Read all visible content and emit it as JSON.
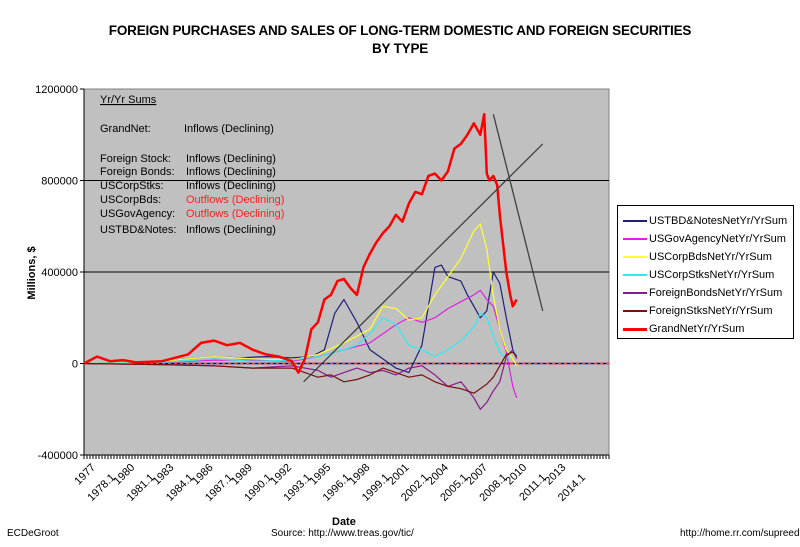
{
  "chart_data": {
    "type": "line",
    "title": "FOREIGN PURCHASES AND SALES OF LONG-TERM DOMESTIC AND FOREIGN SECURITIES",
    "subtitle": "BY TYPE",
    "xlabel": "Date",
    "ylabel": "Millions, $",
    "ylim": [
      -400000,
      1200000
    ],
    "xlim": [
      1977,
      2017.4
    ],
    "y_ticks": [
      "1200000",
      "800000",
      "400000",
      "0",
      "-400000"
    ],
    "y_tick_values": [
      1200000,
      800000,
      400000,
      0,
      -400000
    ],
    "x_tick_labels": [
      "1977",
      "1978.1",
      "1980",
      "1981.1",
      "1983",
      "1984.1",
      "1986",
      "1987.1",
      "1989",
      "1990.1",
      "1992",
      "1993.1",
      "1995",
      "1996.1",
      "1998",
      "1999.1",
      "2001",
      "2002.1",
      "2004",
      "2005.1",
      "2007",
      "2008.1",
      "2010",
      "2011.1",
      "2013",
      "2014.1"
    ],
    "gridlines": "horizontal at 400000 and 800000",
    "legend_position": "right",
    "series": [
      {
        "name": "USTBD&NotesNetYr/YrSum",
        "color": "#1f1f7a",
        "x": [
          1977,
          1980,
          1983,
          1985,
          1987,
          1989,
          1991,
          1993,
          1994.5,
          1995.5,
          1996.3,
          1997,
          1998,
          1999,
          2000,
          2001,
          2002,
          2003,
          2004,
          2004.5,
          2005,
          2006,
          2006.5,
          2007,
          2007.5,
          2008,
          2008.5,
          2009,
          2009.5,
          2010,
          2010.3
        ],
        "y": [
          0,
          5000,
          10000,
          20000,
          30000,
          25000,
          30000,
          25000,
          30000,
          60000,
          220000,
          280000,
          180000,
          60000,
          20000,
          -20000,
          -40000,
          80000,
          420000,
          430000,
          380000,
          360000,
          300000,
          250000,
          200000,
          230000,
          400000,
          350000,
          200000,
          60000,
          30000
        ]
      },
      {
        "name": "USGovAgencyNetYr/YrSum",
        "color": "#e020e0",
        "x": [
          1977,
          1983,
          1987,
          1990,
          1993,
          1995,
          1997,
          1999,
          2001,
          2002,
          2003,
          2004,
          2005,
          2006,
          2007,
          2007.5,
          2008,
          2008.5,
          2009,
          2009.5,
          2010,
          2010.3
        ],
        "y": [
          0,
          5000,
          15000,
          15000,
          10000,
          30000,
          60000,
          90000,
          170000,
          200000,
          180000,
          200000,
          240000,
          270000,
          300000,
          320000,
          280000,
          250000,
          150000,
          50000,
          -100000,
          -150000
        ]
      },
      {
        "name": "USCorpBdsNetYr/YrSum",
        "color": "#ffff33",
        "x": [
          1977,
          1983,
          1987,
          1990,
          1993,
          1995,
          1997,
          1999,
          2000,
          2001,
          2002,
          2003,
          2004,
          2005,
          2006,
          2007,
          2007.5,
          2008,
          2008.5,
          2009,
          2009.5,
          2010,
          2010.3
        ],
        "y": [
          0,
          10000,
          30000,
          20000,
          15000,
          40000,
          90000,
          150000,
          250000,
          240000,
          190000,
          200000,
          300000,
          380000,
          460000,
          580000,
          610000,
          500000,
          300000,
          150000,
          60000,
          20000,
          -10000
        ]
      },
      {
        "name": "USCorpStksNetYr/YrSum",
        "color": "#33e8f0",
        "x": [
          1977,
          1983,
          1987,
          1990,
          1993,
          1995,
          1997,
          1998,
          1999,
          2000,
          2001,
          2002,
          2003,
          2004,
          2005,
          2006,
          2007,
          2007.5,
          2008,
          2008.5,
          2009,
          2009.5,
          2010,
          2010.3
        ],
        "y": [
          0,
          5000,
          20000,
          10000,
          15000,
          30000,
          60000,
          80000,
          130000,
          200000,
          170000,
          80000,
          60000,
          30000,
          60000,
          100000,
          160000,
          220000,
          200000,
          120000,
          50000,
          20000,
          60000,
          40000
        ]
      },
      {
        "name": "ForeignBondsNetYr/YrSum",
        "color": "#8b1a8b",
        "x": [
          1977,
          1983,
          1987,
          1990,
          1993,
          1995,
          1996,
          1997,
          1998,
          1999,
          2000,
          2001,
          2002,
          2003,
          2004,
          2005,
          2006,
          2007,
          2007.5,
          2008,
          2008.5,
          2009,
          2009.5,
          2010,
          2010.3
        ],
        "y": [
          0,
          -5000,
          -10000,
          -20000,
          -10000,
          -30000,
          -60000,
          -40000,
          -20000,
          -40000,
          -30000,
          -50000,
          -20000,
          -10000,
          -50000,
          -100000,
          -80000,
          -150000,
          -200000,
          -170000,
          -120000,
          -80000,
          30000,
          60000,
          20000
        ]
      },
      {
        "name": "ForeignStksNetYr/YrSum",
        "color": "#7a1010",
        "x": [
          1977,
          1983,
          1987,
          1990,
          1993,
          1994,
          1995,
          1996,
          1997,
          1998,
          1999,
          2000,
          2001,
          2002,
          2003,
          2004,
          2005,
          2006,
          2007,
          2008,
          2008.5,
          2009,
          2009.5,
          2010,
          2010.3
        ],
        "y": [
          0,
          -5000,
          -10000,
          -20000,
          -20000,
          -40000,
          -60000,
          -50000,
          -80000,
          -70000,
          -50000,
          -20000,
          -40000,
          -60000,
          -50000,
          -80000,
          -100000,
          -110000,
          -130000,
          -90000,
          -60000,
          -10000,
          40000,
          50000,
          30000
        ]
      },
      {
        "name": "GrandNetYr/YrSum",
        "color": "#ff0000",
        "x": [
          1977,
          1978,
          1979,
          1980,
          1981,
          1983,
          1985,
          1986,
          1987,
          1988,
          1989,
          1990,
          1991,
          1992,
          1993,
          1993.5,
          1994,
          1994.5,
          1995,
          1995.5,
          1996,
          1996.5,
          1997,
          1997.5,
          1998,
          1998.5,
          1999,
          1999.5,
          2000,
          2000.5,
          2001,
          2001.5,
          2002,
          2002.5,
          2003,
          2003.5,
          2004,
          2004.5,
          2005,
          2005.5,
          2006,
          2006.5,
          2007,
          2007.5,
          2007.8,
          2008,
          2008.2,
          2008.5,
          2008.8,
          2009,
          2009.3,
          2009.5,
          2009.8,
          2010,
          2010.3
        ],
        "y": [
          0,
          30000,
          10000,
          15000,
          5000,
          10000,
          40000,
          90000,
          100000,
          80000,
          90000,
          60000,
          40000,
          30000,
          10000,
          -40000,
          20000,
          150000,
          180000,
          280000,
          300000,
          360000,
          370000,
          330000,
          300000,
          420000,
          480000,
          530000,
          570000,
          600000,
          650000,
          620000,
          700000,
          750000,
          740000,
          820000,
          830000,
          800000,
          840000,
          940000,
          960000,
          1000000,
          1050000,
          1000000,
          1090000,
          830000,
          800000,
          820000,
          780000,
          650000,
          500000,
          400000,
          300000,
          250000,
          280000
        ]
      }
    ],
    "trend_lines": [
      {
        "from": [
          1993.9,
          -80000
        ],
        "to": [
          2012.3,
          960000
        ],
        "color": "#404040"
      },
      {
        "from": [
          2008.5,
          1090000
        ],
        "to": [
          2012.3,
          230000
        ],
        "color": "#404040"
      }
    ],
    "annotation_box": {
      "heading": "Yr/Yr Sums",
      "rows": [
        {
          "label": "GrandNet:",
          "value": "Inflows (Declining)",
          "color": "#000000"
        },
        {
          "label": "Foreign Stock:",
          "value": "Inflows (Declining)",
          "color": "#000000"
        },
        {
          "label": "Foreign Bonds:",
          "value": "Inflows (Declining)",
          "color": "#000000"
        },
        {
          "label": "USCorpStks:",
          "value": "Inflows (Declining)",
          "color": "#000000"
        },
        {
          "label": "USCorpBds:",
          "value": "Outflows (Declining)",
          "color": "#ff2020"
        },
        {
          "label": "USGovAgency:",
          "value": "Outflows (Declining)",
          "color": "#ff2020"
        },
        {
          "label": "USTBD&Notes:",
          "value": "Inflows (Declining)",
          "color": "#000000"
        }
      ]
    }
  },
  "footer": {
    "author": "ECDeGroot",
    "source": "Source:  http://www.treas.gov/tic/",
    "url": "http://home.rr.com/supreed"
  }
}
